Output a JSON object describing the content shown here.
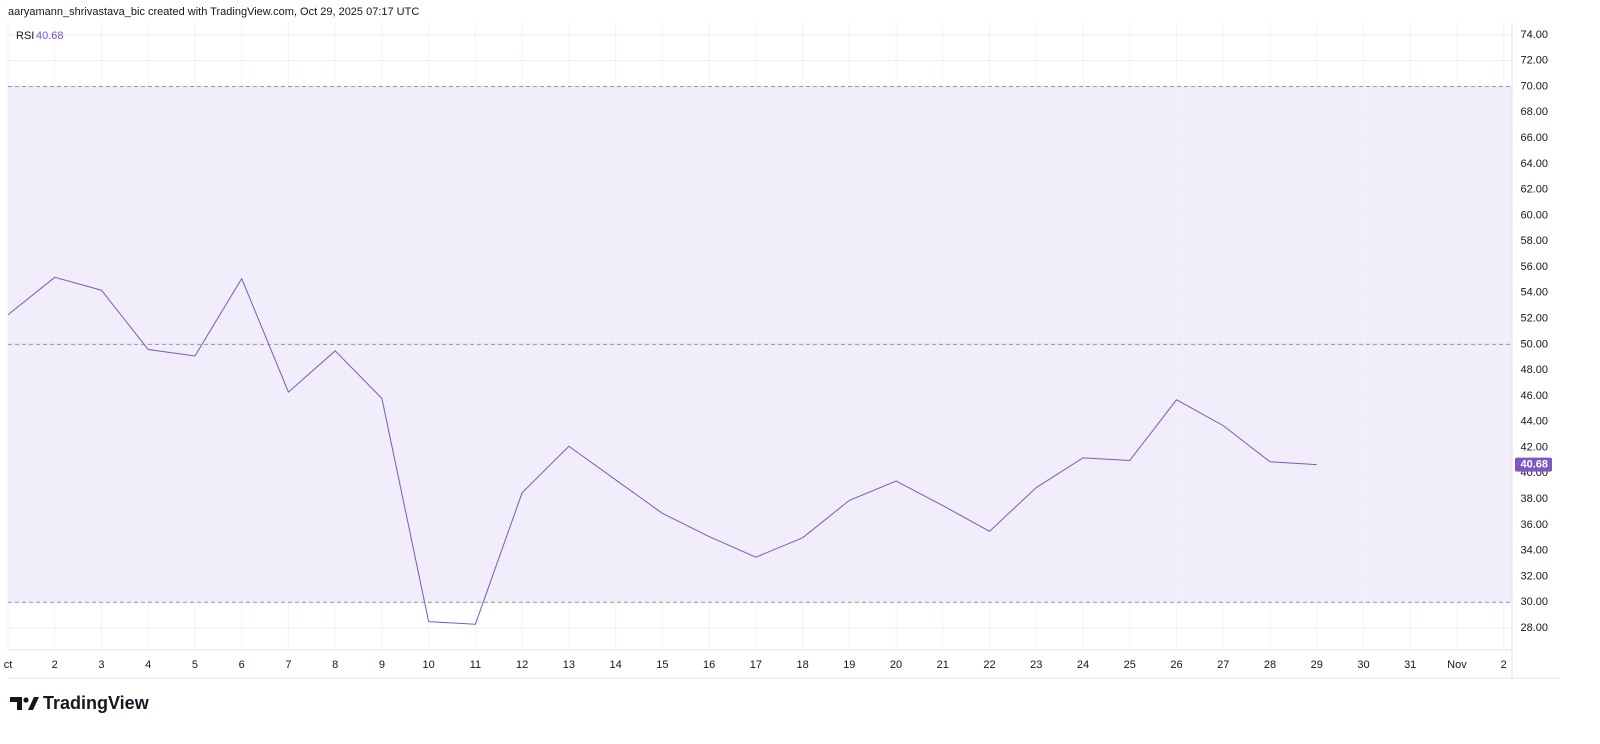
{
  "chart_data": {
    "type": "line",
    "header": "aaryamann_shrivastava_bic created with TradingView.com, Oct 29, 2025 07:17 UTC",
    "logo": "TradingView",
    "categories": [
      "ct",
      "2",
      "3",
      "4",
      "5",
      "6",
      "7",
      "8",
      "9",
      "10",
      "11",
      "12",
      "13",
      "14",
      "15",
      "16",
      "17",
      "18",
      "19",
      "20",
      "21",
      "22",
      "23",
      "24",
      "25",
      "26",
      "27",
      "28",
      "29",
      "30",
      "31",
      "Nov",
      "2"
    ],
    "series": [
      {
        "name": "RSI",
        "color": "#7e57c2",
        "values": [
          52.3,
          55.2,
          54.2,
          49.6,
          49.1,
          55.1,
          46.3,
          49.5,
          45.8,
          28.5,
          28.3,
          38.5,
          42.1,
          39.5,
          36.9,
          35.1,
          33.5,
          35.0,
          37.9,
          39.4,
          37.5,
          35.5,
          38.9,
          41.2,
          41.0,
          45.7,
          43.7,
          40.9,
          40.68,
          null,
          null,
          null,
          null
        ]
      }
    ],
    "ylim": [
      26.3,
      75.0
    ],
    "yticks": [
      {
        "value": 28,
        "label": "28.00"
      },
      {
        "value": 30,
        "label": "30.00"
      },
      {
        "value": 32,
        "label": "32.00"
      },
      {
        "value": 34,
        "label": "34.00"
      },
      {
        "value": 36,
        "label": "36.00"
      },
      {
        "value": 38,
        "label": "38.00"
      },
      {
        "value": 40,
        "label": "40.00"
      },
      {
        "value": 42,
        "label": "42.00"
      },
      {
        "value": 44,
        "label": "44.00"
      },
      {
        "value": 46,
        "label": "46.00"
      },
      {
        "value": 48,
        "label": "48.00"
      },
      {
        "value": 50,
        "label": "50.00"
      },
      {
        "value": 52,
        "label": "52.00"
      },
      {
        "value": 54,
        "label": "54.00"
      },
      {
        "value": 56,
        "label": "56.00"
      },
      {
        "value": 58,
        "label": "58.00"
      },
      {
        "value": 60,
        "label": "60.00"
      },
      {
        "value": 62,
        "label": "62.00"
      },
      {
        "value": 64,
        "label": "64.00"
      },
      {
        "value": 66,
        "label": "66.00"
      },
      {
        "value": 68,
        "label": "68.00"
      },
      {
        "value": 70,
        "label": "70.00"
      },
      {
        "value": 72,
        "label": "72.00"
      },
      {
        "value": 74,
        "label": "74.00"
      }
    ],
    "levels": [
      30,
      50,
      70
    ],
    "band_color": "#f1edfa",
    "grid": true
  }
}
